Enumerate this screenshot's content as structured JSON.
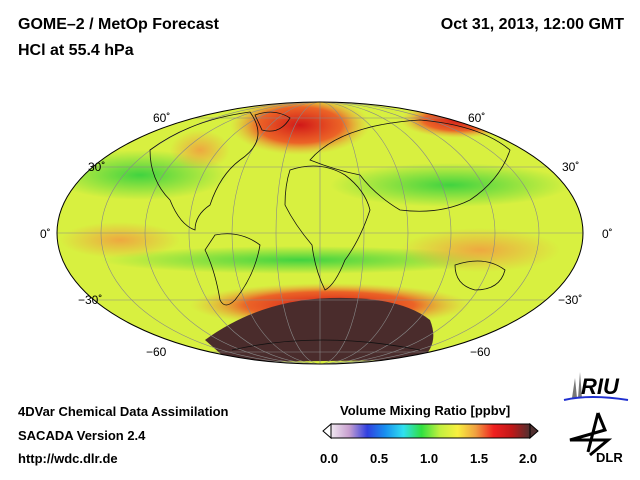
{
  "header": {
    "title": "GOME–2 / MetOp Forecast",
    "subtitle": "HCl at 55.4 hPa",
    "datetime": "Oct 31, 2013, 12:00 GMT"
  },
  "map": {
    "projection": "Hammer/Aitoff global",
    "lat_labels_left": [
      "60˚",
      "30˚",
      "0˚",
      "−30˚",
      "−60"
    ],
    "lat_labels_right": [
      "60˚",
      "30˚",
      "0˚",
      "−30˚",
      "−60"
    ]
  },
  "footer": {
    "line1": "4DVar Chemical Data Assimilation",
    "line2": "SACADA Version 2.4",
    "line3": "http://wdc.dlr.de"
  },
  "colorbar": {
    "title": "Volume Mixing Ratio [ppbv]",
    "ticks": [
      "0.0",
      "0.5",
      "1.0",
      "1.5",
      "2.0"
    ],
    "min": 0.0,
    "max": 2.0,
    "colors": [
      "#f0e8f0",
      "#c8a0d0",
      "#3040e0",
      "#1890f0",
      "#30e0f0",
      "#30e040",
      "#c0f040",
      "#f8f040",
      "#f0a040",
      "#f02020",
      "#c01818",
      "#503030"
    ]
  },
  "logos": {
    "riu": "RIU",
    "dlr": "DLR"
  }
}
